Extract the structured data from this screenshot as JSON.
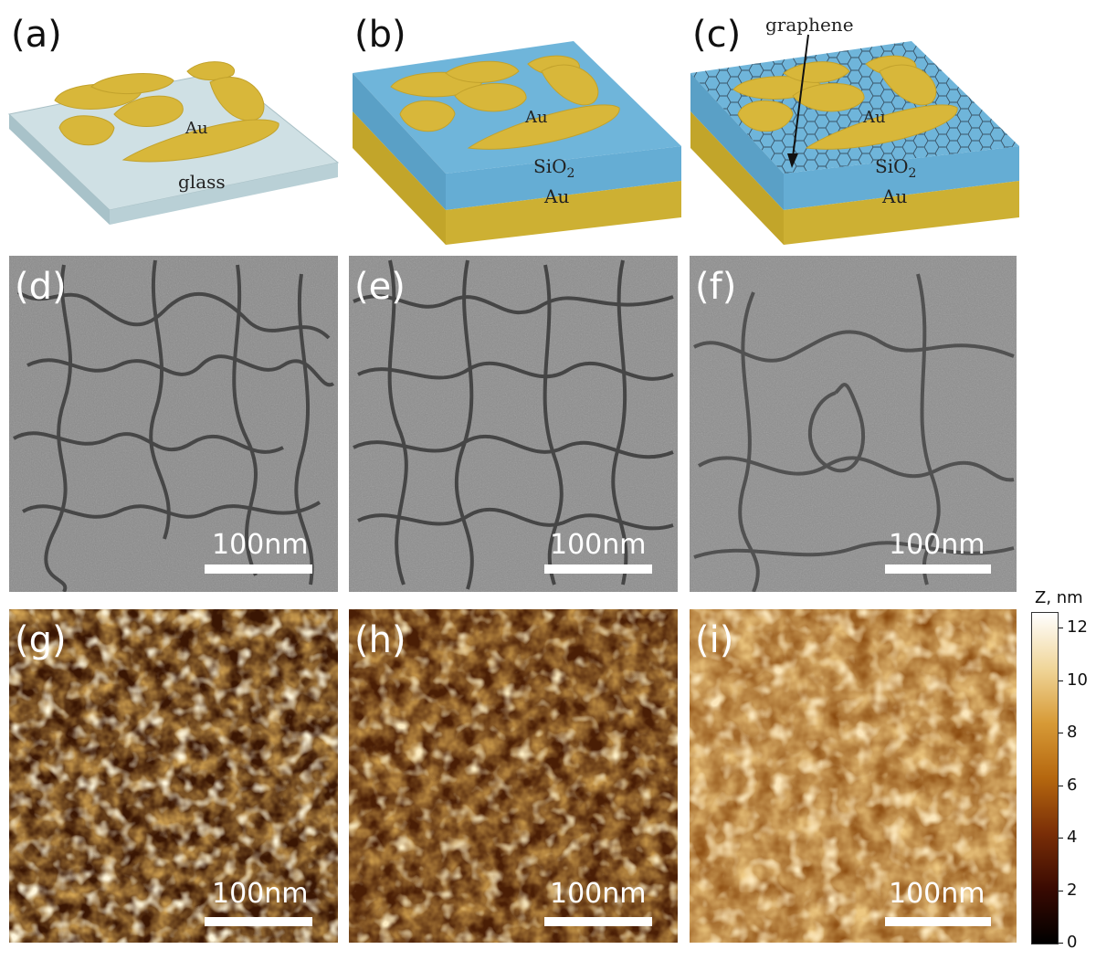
{
  "panels": {
    "a": {
      "label": "(a)",
      "substrate": "glass",
      "particles": "Au"
    },
    "b": {
      "label": "(b)",
      "spacer": "SiO",
      "spacer_sub": "2",
      "particles": "Au",
      "mirror": "Au"
    },
    "c": {
      "label": "(c)",
      "spacer": "SiO",
      "spacer_sub": "2",
      "particles": "Au",
      "mirror": "Au",
      "layer": "graphene"
    },
    "d": {
      "label": "(d)",
      "scalebar": "100nm"
    },
    "e": {
      "label": "(e)",
      "scalebar": "100nm"
    },
    "f": {
      "label": "(f)",
      "scalebar": "100nm"
    },
    "g": {
      "label": "(g)",
      "scalebar": "100nm"
    },
    "h": {
      "label": "(h)",
      "scalebar": "100nm"
    },
    "i": {
      "label": "(i)",
      "scalebar": "100nm"
    }
  },
  "colorbar": {
    "title": "Z, nm",
    "ticks": [
      "12",
      "10",
      "8",
      "6",
      "4",
      "2",
      "0"
    ],
    "range": [
      0,
      12.6
    ],
    "colors": [
      "#000000",
      "#3a0a02",
      "#7a2e07",
      "#b5670f",
      "#d79a36",
      "#f0d69a",
      "#ffffff"
    ]
  },
  "colors": {
    "gold": "#d8b73a",
    "gold_dark": "#b89a26",
    "glass_top": "#cfe0e4",
    "glass_side": "#b5cdd3",
    "sio2_top": "#6fb5da",
    "sio2_side": "#5aa4cc",
    "au_side": "#c9ad2f"
  }
}
